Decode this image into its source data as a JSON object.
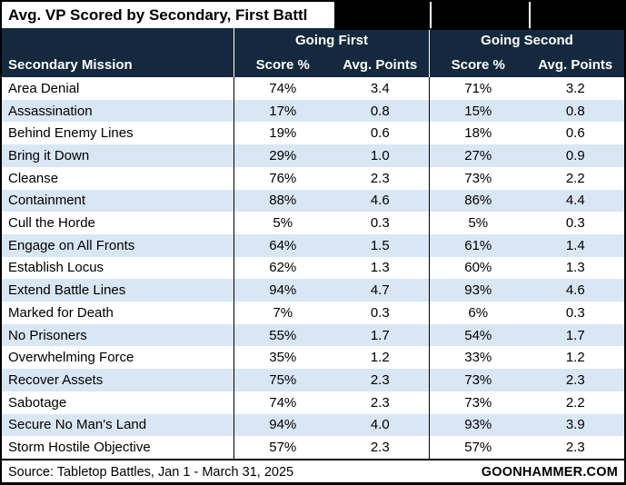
{
  "title": "Avg. VP Scored by Secondary, First Battl",
  "table": {
    "mission_header": "Secondary Mission",
    "group_first": "Going First",
    "group_second": "Going Second",
    "score_header": "Score %",
    "avg_header": "Avg. Points"
  },
  "footer": {
    "source": "Source: Tabletop Battles, Jan 1 - March 31, 2025",
    "brand": "GOONHAMMER.COM"
  },
  "colors": {
    "header_bg": "#14293d",
    "header_text": "#ffffff",
    "alt_row_bg": "#d9e7f5",
    "row_bg": "#ffffff",
    "border": "#000000",
    "redaction": "#000000"
  },
  "chart_data": {
    "type": "table",
    "title": "Avg. VP Scored by Secondary, First Battl",
    "columns": [
      "Secondary Mission",
      "Going First Score %",
      "Going First Avg. Points",
      "Going Second Score %",
      "Going Second Avg. Points"
    ],
    "rows": [
      {
        "mission": "Area Denial",
        "first_score": "74%",
        "first_avg": "3.4",
        "second_score": "71%",
        "second_avg": "3.2"
      },
      {
        "mission": "Assassination",
        "first_score": "17%",
        "first_avg": "0.8",
        "second_score": "15%",
        "second_avg": "0.8"
      },
      {
        "mission": "Behind Enemy Lines",
        "first_score": "19%",
        "first_avg": "0.6",
        "second_score": "18%",
        "second_avg": "0.6"
      },
      {
        "mission": "Bring it Down",
        "first_score": "29%",
        "first_avg": "1.0",
        "second_score": "27%",
        "second_avg": "0.9"
      },
      {
        "mission": "Cleanse",
        "first_score": "76%",
        "first_avg": "2.3",
        "second_score": "73%",
        "second_avg": "2.2"
      },
      {
        "mission": "Containment",
        "first_score": "88%",
        "first_avg": "4.6",
        "second_score": "86%",
        "second_avg": "4.4"
      },
      {
        "mission": "Cull the Horde",
        "first_score": "5%",
        "first_avg": "0.3",
        "second_score": "5%",
        "second_avg": "0.3"
      },
      {
        "mission": "Engage on All Fronts",
        "first_score": "64%",
        "first_avg": "1.5",
        "second_score": "61%",
        "second_avg": "1.4"
      },
      {
        "mission": "Establish Locus",
        "first_score": "62%",
        "first_avg": "1.3",
        "second_score": "60%",
        "second_avg": "1.3"
      },
      {
        "mission": "Extend Battle Lines",
        "first_score": "94%",
        "first_avg": "4.7",
        "second_score": "93%",
        "second_avg": "4.6"
      },
      {
        "mission": "Marked for Death",
        "first_score": "7%",
        "first_avg": "0.3",
        "second_score": "6%",
        "second_avg": "0.3"
      },
      {
        "mission": "No Prisoners",
        "first_score": "55%",
        "first_avg": "1.7",
        "second_score": "54%",
        "second_avg": "1.7"
      },
      {
        "mission": "Overwhelming Force",
        "first_score": "35%",
        "first_avg": "1.2",
        "second_score": "33%",
        "second_avg": "1.2"
      },
      {
        "mission": "Recover Assets",
        "first_score": "75%",
        "first_avg": "2.3",
        "second_score": "73%",
        "second_avg": "2.3"
      },
      {
        "mission": "Sabotage",
        "first_score": "74%",
        "first_avg": "2.3",
        "second_score": "73%",
        "second_avg": "2.2"
      },
      {
        "mission": "Secure No Man's Land",
        "first_score": "94%",
        "first_avg": "4.0",
        "second_score": "93%",
        "second_avg": "3.9"
      },
      {
        "mission": "Storm Hostile Objective",
        "first_score": "57%",
        "first_avg": "2.3",
        "second_score": "57%",
        "second_avg": "2.3"
      }
    ]
  }
}
